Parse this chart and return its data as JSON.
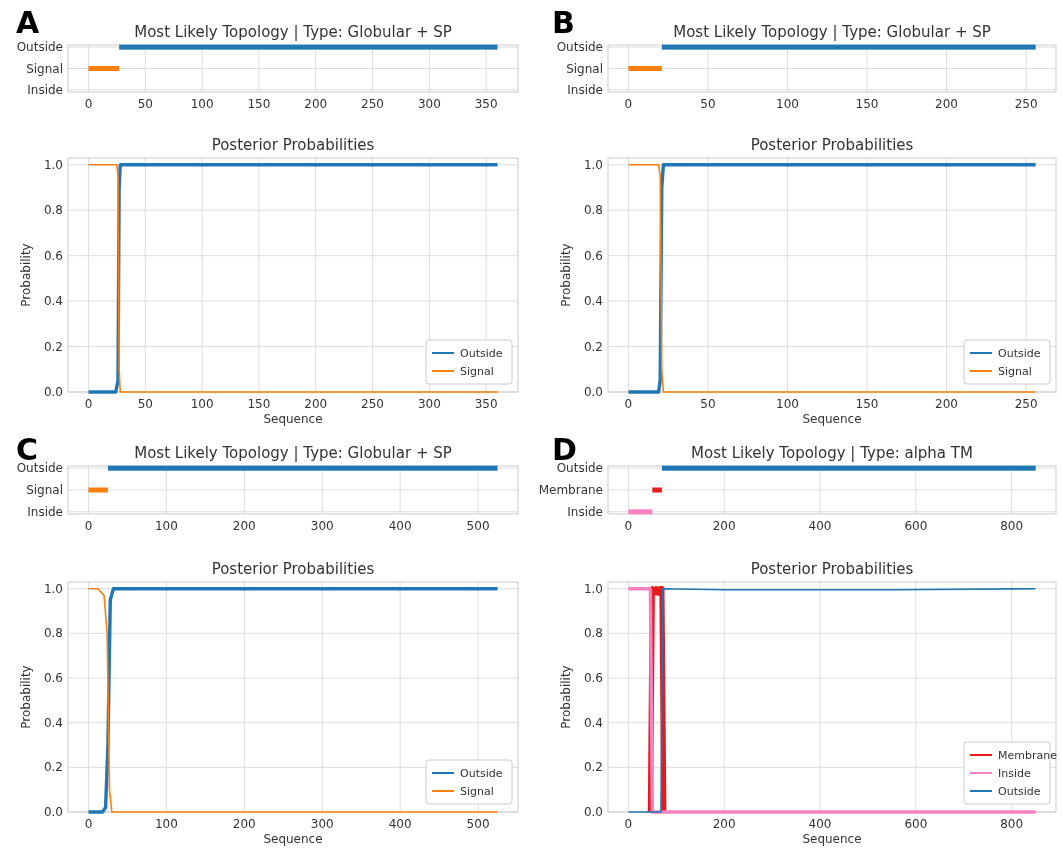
{
  "chart_data": [
    {
      "type": "bar",
      "orientation": "horizontal",
      "title": "Most Likely Topology | Type: Globular + SP",
      "annotations": [
        "A"
      ],
      "categories": [
        "Outside",
        "Signal",
        "Inside"
      ],
      "values": [
        333,
        27,
        null
      ],
      "base": [
        27,
        0,
        null
      ],
      "colors": [
        "#1f77b4",
        "#ff7f0e",
        null
      ],
      "xlim": [
        -18,
        378
      ],
      "xticks": [
        0,
        50,
        100,
        150,
        200,
        250,
        300,
        350
      ],
      "grid": true
    },
    {
      "type": "line",
      "title": "Posterior Probabilities",
      "xlabel": "Sequence",
      "ylabel": "Probability",
      "xlim": [
        -18,
        378
      ],
      "xticks": [
        0,
        50,
        100,
        150,
        200,
        250,
        300,
        350
      ],
      "ylim": [
        0,
        1.03
      ],
      "yticks": [
        {
          "value": 0,
          "label": "0.0"
        },
        {
          "value": 0.2,
          "label": "0.2"
        },
        {
          "value": 0.4,
          "label": "0.4"
        },
        {
          "value": 0.6,
          "label": "0.6"
        },
        {
          "value": 0.8,
          "label": "0.8"
        },
        {
          "value": 1,
          "label": "1.0"
        }
      ],
      "grid": true,
      "legend": "bottom right",
      "series": [
        {
          "name": "Outside",
          "color": "#1f77b4",
          "x": [
            0,
            24,
            26,
            27,
            28,
            360
          ],
          "values": [
            0,
            0,
            0.05,
            0.9,
            1,
            1
          ]
        },
        {
          "name": "Signal",
          "color": "#ff7f0e",
          "x": [
            0,
            25,
            26,
            27,
            28,
            360
          ],
          "values": [
            1,
            1,
            0.95,
            0.1,
            0,
            0
          ]
        }
      ]
    },
    {
      "type": "bar",
      "orientation": "horizontal",
      "title": "Most Likely Topology | Type: Globular + SP",
      "annotations": [
        "B"
      ],
      "categories": [
        "Outside",
        "Signal",
        "Inside"
      ],
      "values": [
        235,
        21,
        null
      ],
      "base": [
        21,
        0,
        null
      ],
      "colors": [
        "#1f77b4",
        "#ff7f0e",
        null
      ],
      "xlim": [
        -12.8,
        268.8
      ],
      "xticks": [
        0,
        50,
        100,
        150,
        200,
        250
      ],
      "grid": true
    },
    {
      "type": "line",
      "title": "Posterior Probabilities",
      "xlabel": "Sequence",
      "ylabel": "Probability",
      "xlim": [
        -12.8,
        268.8
      ],
      "xticks": [
        0,
        50,
        100,
        150,
        200,
        250
      ],
      "ylim": [
        0,
        1.03
      ],
      "yticks": [
        {
          "value": 0,
          "label": "0.0"
        },
        {
          "value": 0.2,
          "label": "0.2"
        },
        {
          "value": 0.4,
          "label": "0.4"
        },
        {
          "value": 0.6,
          "label": "0.6"
        },
        {
          "value": 0.8,
          "label": "0.8"
        },
        {
          "value": 1,
          "label": "1.0"
        }
      ],
      "grid": true,
      "legend": "bottom right",
      "series": [
        {
          "name": "Outside",
          "color": "#1f77b4",
          "x": [
            0,
            19,
            20,
            21,
            22,
            256
          ],
          "values": [
            0,
            0,
            0.05,
            0.9,
            1,
            1
          ]
        },
        {
          "name": "Signal",
          "color": "#ff7f0e",
          "x": [
            0,
            19,
            20,
            21,
            22,
            256
          ],
          "values": [
            1,
            1,
            0.95,
            0.1,
            0,
            0
          ]
        }
      ]
    },
    {
      "type": "bar",
      "orientation": "horizontal",
      "title": "Most Likely Topology | Type: Globular + SP",
      "annotations": [
        "C"
      ],
      "categories": [
        "Outside",
        "Signal",
        "Inside"
      ],
      "values": [
        500,
        25,
        null
      ],
      "base": [
        25,
        0,
        null
      ],
      "colors": [
        "#1f77b4",
        "#ff7f0e",
        null
      ],
      "xlim": [
        -26.25,
        551.25
      ],
      "xticks": [
        0,
        100,
        200,
        300,
        400,
        500
      ],
      "grid": true
    },
    {
      "type": "line",
      "title": "Posterior Probabilities",
      "xlabel": "Sequence",
      "ylabel": "Probability",
      "xlim": [
        -26.25,
        551.25
      ],
      "xticks": [
        0,
        100,
        200,
        300,
        400,
        500
      ],
      "ylim": [
        0,
        1.03
      ],
      "yticks": [
        {
          "value": 0,
          "label": "0.0"
        },
        {
          "value": 0.2,
          "label": "0.2"
        },
        {
          "value": 0.4,
          "label": "0.4"
        },
        {
          "value": 0.6,
          "label": "0.6"
        },
        {
          "value": 0.8,
          "label": "0.8"
        },
        {
          "value": 1,
          "label": "1.0"
        }
      ],
      "grid": true,
      "legend": "bottom right",
      "series": [
        {
          "name": "Outside",
          "color": "#1f77b4",
          "x": [
            0,
            18,
            22,
            25,
            28,
            32,
            525
          ],
          "values": [
            0,
            0,
            0.02,
            0.3,
            0.95,
            1,
            1
          ]
        },
        {
          "name": "Signal",
          "color": "#ff7f0e",
          "x": [
            0,
            12,
            20,
            24,
            27,
            30,
            525
          ],
          "values": [
            1,
            1,
            0.97,
            0.8,
            0.1,
            0,
            0
          ]
        }
      ]
    },
    {
      "type": "bar",
      "orientation": "horizontal",
      "title": "Most Likely Topology | Type: alpha TM",
      "annotations": [
        "D"
      ],
      "categories": [
        "Outside",
        "Membrane",
        "Inside"
      ],
      "values": [
        780,
        20,
        50
      ],
      "base": [
        70,
        50,
        0
      ],
      "colors": [
        "#1f77b4",
        "#e41a1c",
        "#f781bf"
      ],
      "xlim": [
        -42.5,
        892.5
      ],
      "xticks": [
        0,
        200,
        400,
        600,
        800
      ],
      "grid": true
    },
    {
      "type": "line",
      "title": "Posterior Probabilities",
      "xlabel": "Sequence",
      "ylabel": "Probability",
      "xlim": [
        -42.5,
        892.5
      ],
      "xticks": [
        0,
        200,
        400,
        600,
        800
      ],
      "ylim": [
        0,
        1.03
      ],
      "yticks": [
        {
          "value": 0,
          "label": "0.0"
        },
        {
          "value": 0.2,
          "label": "0.2"
        },
        {
          "value": 0.4,
          "label": "0.4"
        },
        {
          "value": 0.6,
          "label": "0.6"
        },
        {
          "value": 0.8,
          "label": "0.8"
        },
        {
          "value": 1,
          "label": "1.0"
        }
      ],
      "grid": true,
      "legend": "bottom right",
      "series": [
        {
          "name": "Membrane",
          "color": "#e41a1c",
          "x": [
            46,
            50,
            54,
            58,
            62,
            66,
            70,
            74
          ],
          "values": [
            0,
            1,
            0.98,
            1,
            0.98,
            1,
            1,
            0
          ]
        },
        {
          "name": "Inside",
          "color": "#f781bf",
          "x": [
            0,
            46,
            50,
            850
          ],
          "values": [
            1,
            1,
            0,
            0
          ]
        },
        {
          "name": "Outside",
          "color": "#1f77b4",
          "x": [
            0,
            68,
            72,
            200,
            550,
            850
          ],
          "values": [
            0,
            0,
            1,
            0.995,
            0.995,
            1
          ]
        }
      ]
    }
  ]
}
